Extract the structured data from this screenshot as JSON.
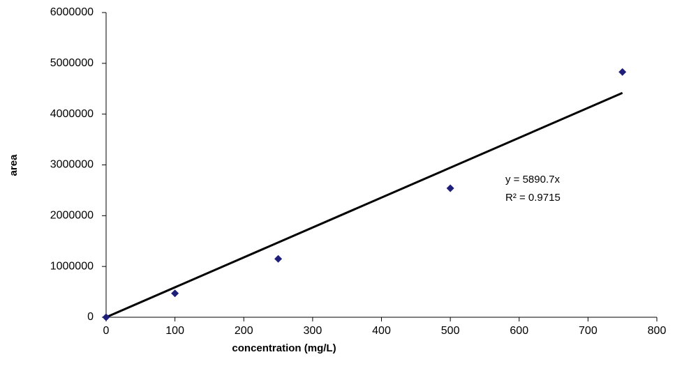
{
  "chart_data": {
    "type": "scatter",
    "x_label": "concentration (mg/L)",
    "y_label": "area",
    "series": [
      {
        "color": "#1f1f7a",
        "x": [
          0,
          100,
          250,
          500,
          750
        ],
        "values": [
          0,
          470000,
          1150000,
          2540000,
          4830000
        ]
      }
    ],
    "trendline": {
      "slope": 5890.7,
      "color": "#000000",
      "equation": "y = 5890.7x",
      "r_squared": "R² = 0.9715"
    },
    "xlim": [
      0,
      800
    ],
    "xticks": [
      0,
      100,
      200,
      300,
      400,
      500,
      600,
      700,
      800
    ],
    "ylim": [
      0,
      6000000
    ],
    "yticks": [
      0,
      1000000,
      2000000,
      3000000,
      4000000,
      5000000,
      6000000
    ],
    "grid": false
  }
}
